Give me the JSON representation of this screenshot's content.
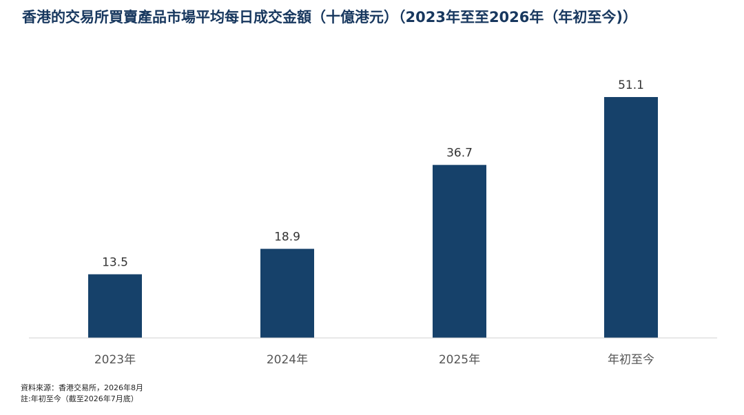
{
  "chart_data": {
    "type": "bar",
    "title": "香港的交易所買賣產品市場平均每日成交金額（十億港元）（2023年至至2026年（年初至今)）",
    "categories": [
      "2023年",
      "2024年",
      "2025年",
      "年初至今"
    ],
    "values": [
      13.5,
      18.9,
      36.7,
      51.1
    ],
    "value_labels": [
      "13.5",
      "18.9",
      "36.7",
      "51.1"
    ],
    "xlabel": "",
    "ylabel": "",
    "ylim": [
      0,
      55
    ],
    "grid": false,
    "legend": "none",
    "bar_color": "#16416a"
  },
  "footnotes": {
    "source": "資料來源：香港交易所，2026年8月",
    "note": "註:年初至今（截至2026年7月底）"
  }
}
